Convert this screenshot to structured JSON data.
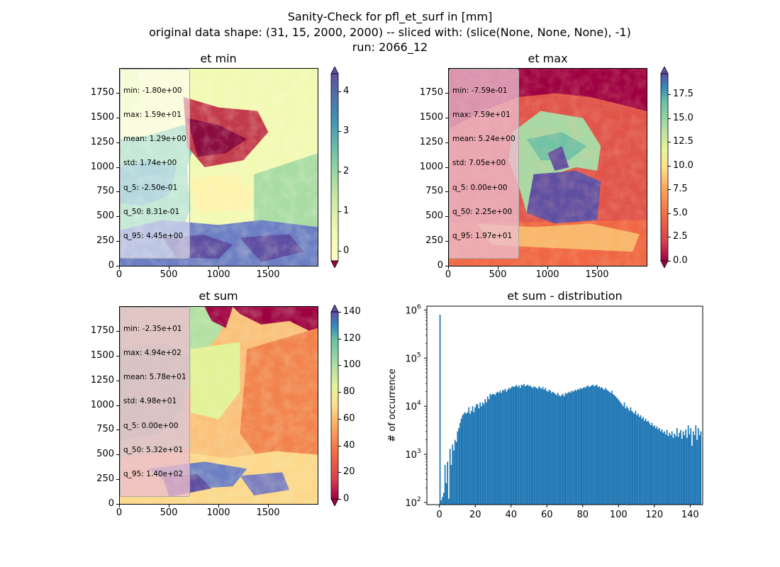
{
  "suptitle": {
    "line1": "Sanity-Check for pfl_et_surf in [mm]",
    "line2": "original data shape: (31, 15, 2000, 2000) -- sliced with: (slice(None, None, None), -1)",
    "line3": "run: 2066_12"
  },
  "colormap": "Spectral",
  "colors": {
    "hist_bar": "#1f77b4",
    "map_dark_red": "#9e0142",
    "map_purple": "#5e4fa2"
  },
  "panels": [
    {
      "title": "et min",
      "stats": [
        "min: -1.80e+00",
        "max: 1.59e+01",
        "mean: 1.29e+00",
        "std: 1.74e+00",
        "q_5: -2.50e-01",
        "q_50: 8.31e-01",
        "q_95: 4.45e+00"
      ],
      "x_ticks": [
        "0",
        "500",
        "1000",
        "1500"
      ],
      "y_ticks": [
        "0",
        "250",
        "500",
        "750",
        "1000",
        "1250",
        "1500",
        "1750"
      ],
      "cbar_ticks": [
        "0",
        "1",
        "2",
        "3",
        "4"
      ],
      "cbar_range": [
        -0.25,
        4.45
      ]
    },
    {
      "title": "et max",
      "stats": [
        "min: -7.59e-01",
        "max: 7.59e+01",
        "mean: 5.24e+00",
        "std: 7.05e+00",
        "q_5: 0.00e+00",
        "q_50: 2.25e+00",
        "q_95: 1.97e+01"
      ],
      "x_ticks": [
        "0",
        "500",
        "1000",
        "1500"
      ],
      "y_ticks": [
        "0",
        "250",
        "500",
        "750",
        "1000",
        "1250",
        "1500",
        "1750"
      ],
      "cbar_ticks": [
        "0.0",
        "2.5",
        "5.0",
        "7.5",
        "10.0",
        "12.5",
        "15.0",
        "17.5"
      ],
      "cbar_range": [
        0,
        19.7
      ]
    },
    {
      "title": "et sum",
      "stats": [
        "min: -2.35e+01",
        "max: 4.94e+02",
        "mean: 5.78e+01",
        "std: 4.98e+01",
        "q_5: 0.00e+00",
        "q_50: 5.32e+01",
        "q_95: 1.40e+02"
      ],
      "x_ticks": [
        "0",
        "500",
        "1000",
        "1500"
      ],
      "y_ticks": [
        "0",
        "250",
        "500",
        "750",
        "1000",
        "1250",
        "1500",
        "1750"
      ],
      "cbar_ticks": [
        "0",
        "20",
        "40",
        "60",
        "80",
        "100",
        "120",
        "140"
      ],
      "cbar_range": [
        0,
        140
      ]
    }
  ],
  "chart_data": {
    "type": "bar",
    "title": "et sum - distribution",
    "ylabel": "# of occurrence",
    "xlabel": "",
    "yscale": "log",
    "ylim": [
      90,
      1200000
    ],
    "xlim": [
      -7,
      147
    ],
    "x_ticks": [
      "0",
      "20",
      "40",
      "60",
      "80",
      "100",
      "120",
      "140"
    ],
    "y_ticks": [
      "10",
      "10",
      "10",
      "10",
      "10"
    ],
    "y_tick_exponents": [
      "2",
      "3",
      "4",
      "5",
      "6"
    ],
    "bin_start": 0,
    "bin_width": 0.7,
    "values": [
      800000,
      110,
      130,
      160,
      600,
      250,
      700,
      120,
      1300,
      600,
      1600,
      1200,
      2000,
      1800,
      3000,
      3500,
      4500,
      5500,
      6500,
      7000,
      7500,
      7000,
      7500,
      9500,
      7000,
      8000,
      10000,
      7500,
      9500,
      11000,
      11000,
      9000,
      12000,
      10000,
      12000,
      11000,
      14000,
      12000,
      16000,
      14000,
      18000,
      17000,
      18000,
      18000,
      17000,
      19000,
      20000,
      19000,
      21000,
      19000,
      22000,
      21000,
      23000,
      20000,
      22000,
      24000,
      23000,
      25000,
      26000,
      25000,
      26000,
      28000,
      25000,
      27000,
      24000,
      28000,
      27000,
      29000,
      26000,
      27000,
      28000,
      26000,
      27000,
      25000,
      24000,
      26000,
      25000,
      24000,
      23000,
      26000,
      24000,
      23000,
      25000,
      22000,
      24000,
      21000,
      20000,
      22000,
      21000,
      19000,
      20000,
      19000,
      18000,
      17000,
      19000,
      17000,
      16000,
      17000,
      18000,
      16000,
      19000,
      18000,
      19000,
      20000,
      19000,
      21000,
      20000,
      21000,
      22000,
      21000,
      23000,
      22000,
      24000,
      23000,
      24000,
      25000,
      24000,
      26000,
      27000,
      25000,
      26000,
      27000,
      28000,
      26000,
      27000,
      28000,
      25000,
      26000,
      24000,
      25000,
      23000,
      22000,
      24000,
      22000,
      21000,
      20000,
      19000,
      21000,
      18000,
      17000,
      16000,
      15000,
      14000,
      13000,
      12000,
      11000,
      10000,
      12000,
      9000,
      10000,
      9000,
      8000,
      9500,
      8000,
      7500,
      7000,
      8000,
      6500,
      7000,
      6000,
      6500,
      5500,
      6000,
      5000,
      5500,
      4800,
      5000,
      4500,
      4000,
      4500,
      3800,
      4000,
      3500,
      3800,
      3300,
      3500,
      3000,
      3300,
      2800,
      3000,
      2600,
      3200,
      2400,
      2800,
      2500,
      3000,
      2200,
      2700,
      2400,
      3500,
      2300,
      2800,
      3200,
      2100,
      3000,
      2500,
      3300,
      2200,
      4000,
      2600,
      3500,
      1500,
      3000,
      2500,
      4000,
      2000,
      3500,
      2500,
      3000
    ]
  }
}
